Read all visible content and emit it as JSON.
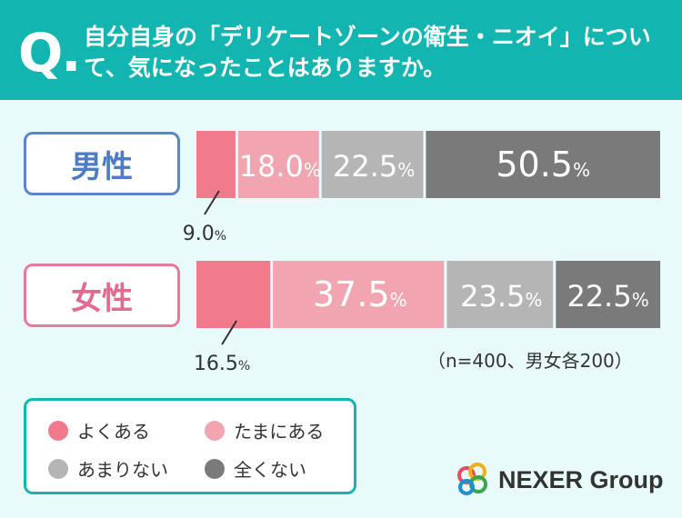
{
  "header": {
    "q_mark": "Q.",
    "title": "自分自身の「デリケートゾーンの衛生・ニオイ」について、気になったことはありますか。"
  },
  "colors": {
    "often": "#ee7a8c",
    "sometimes": "#f1a5b0",
    "rarely": "#b5b5b5",
    "never": "#7a7a7a",
    "accent": "#13b5b0",
    "male": "#4d7bc6",
    "female": "#e26a8e"
  },
  "chart_data": {
    "type": "bar",
    "orientation": "horizontal-stacked-100",
    "unit": "%",
    "categories": [
      "男性",
      "女性"
    ],
    "series": [
      {
        "name": "よくある",
        "values": [
          9.0,
          16.5
        ]
      },
      {
        "name": "たまにある",
        "values": [
          18.0,
          37.5
        ]
      },
      {
        "name": "あまりない",
        "values": [
          22.5,
          23.5
        ]
      },
      {
        "name": "全くない",
        "values": [
          50.5,
          22.5
        ]
      }
    ],
    "xlim": [
      0,
      100
    ],
    "grid": false,
    "legend_position": "bottom-left"
  },
  "sample_note": "（n=400、男女各200）",
  "brand": {
    "name": "NEXER Group"
  }
}
